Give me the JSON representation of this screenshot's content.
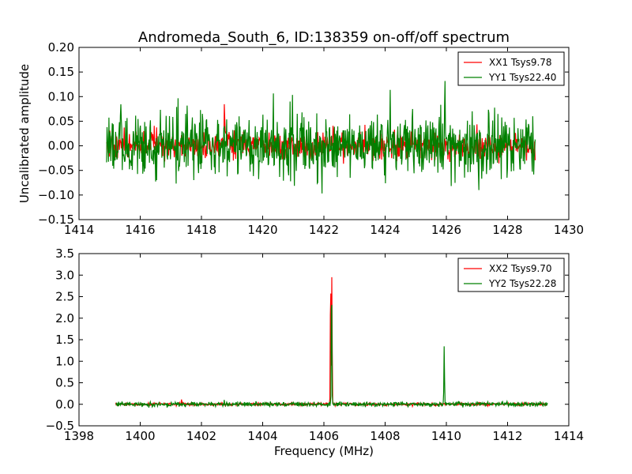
{
  "figure": {
    "title": "Andromeda_South_6, ID:138359 on-off/off spectrum"
  },
  "chart_data": [
    {
      "type": "line",
      "title": "Andromeda_South_6, ID:138359 on-off/off spectrum",
      "xlabel": "",
      "ylabel": "Uncalibrated amplitude",
      "xlim": [
        1414,
        1430
      ],
      "ylim": [
        -0.15,
        0.2
      ],
      "xticks": [
        1414,
        1416,
        1418,
        1420,
        1422,
        1424,
        1426,
        1428,
        1430
      ],
      "yticks": [
        -0.15,
        -0.1,
        -0.05,
        0.0,
        0.05,
        0.1,
        0.15,
        0.2
      ],
      "xtick_labels": [
        "1414",
        "1416",
        "1418",
        "1420",
        "1422",
        "1424",
        "1426",
        "1428",
        "1430"
      ],
      "ytick_labels": [
        "−0.15",
        "−0.10",
        "−0.05",
        "0.00",
        "0.05",
        "0.10",
        "0.15",
        "0.20"
      ],
      "grid": false,
      "legend_position": "top-right",
      "series": [
        {
          "name": "XX1 Tsys9.78",
          "color": "#ff0000",
          "x_range": [
            1414.9,
            1428.9
          ],
          "noise_sigma": 0.013,
          "peaks": [
            {
              "x": 1418.75,
              "y": 0.119
            },
            {
              "x": 1418.8,
              "y": 0.06
            }
          ]
        },
        {
          "name": "YY1 Tsys22.40",
          "color": "#008000",
          "x_range": [
            1414.9,
            1428.9
          ],
          "noise_sigma": 0.032,
          "peaks": [
            {
              "x": 1425.95,
              "y": 0.151
            },
            {
              "x": 1425.75,
              "y": 0.065
            },
            {
              "x": 1427.05,
              "y": -0.115
            }
          ]
        }
      ]
    },
    {
      "type": "line",
      "title": "",
      "xlabel": "Frequency (MHz)",
      "ylabel": "",
      "xlim": [
        1398,
        1414
      ],
      "ylim": [
        -0.5,
        3.5
      ],
      "xticks": [
        1398,
        1400,
        1402,
        1404,
        1406,
        1408,
        1410,
        1412,
        1414
      ],
      "yticks": [
        -0.5,
        0.0,
        0.5,
        1.0,
        1.5,
        2.0,
        2.5,
        3.0,
        3.5
      ],
      "xtick_labels": [
        "1398",
        "1400",
        "1402",
        "1404",
        "1406",
        "1408",
        "1410",
        "1412",
        "1414"
      ],
      "ytick_labels": [
        "−0.5",
        "0.0",
        "0.5",
        "1.0",
        "1.5",
        "2.0",
        "2.5",
        "3.0",
        "3.5"
      ],
      "grid": false,
      "legend_position": "top-right",
      "series": [
        {
          "name": "XX2 Tsys9.70",
          "color": "#ff0000",
          "x_range": [
            1399.2,
            1413.3
          ],
          "noise_sigma": 0.015,
          "peaks": [
            {
              "x": 1406.22,
              "y": 3.15
            },
            {
              "x": 1406.26,
              "y": 3.05
            },
            {
              "x": 1401.35,
              "y": 0.12
            }
          ]
        },
        {
          "name": "YY2 Tsys22.28",
          "color": "#008000",
          "x_range": [
            1399.2,
            1413.3
          ],
          "noise_sigma": 0.025,
          "peaks": [
            {
              "x": 1406.25,
              "y": 3.08
            },
            {
              "x": 1409.93,
              "y": 1.45
            }
          ]
        }
      ]
    }
  ]
}
